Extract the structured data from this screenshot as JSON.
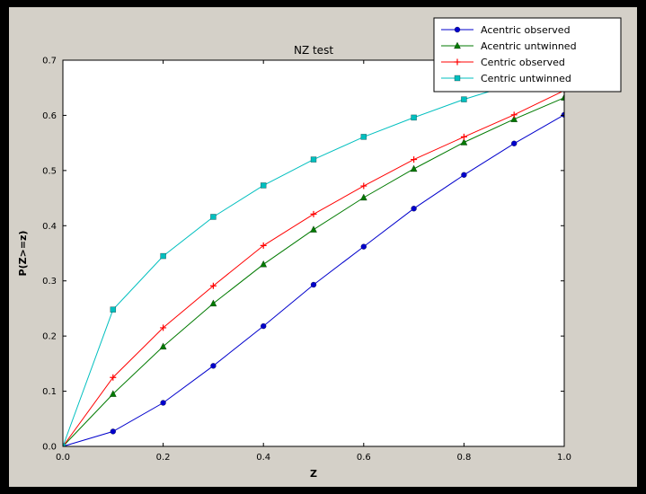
{
  "window": {
    "kind": "matplotlib-figure"
  },
  "colors": {
    "frame": "#000000",
    "figure_bg": "#d4d0c8",
    "axes_bg": "#ffffff",
    "axis_edge": "#000000",
    "legend_bg": "#ffffff",
    "legend_border": "#000000"
  },
  "chart_data": {
    "type": "line",
    "title": "NZ test",
    "xlabel": "Z",
    "ylabel": "P(Z>=z)",
    "xlim": [
      0.0,
      1.0
    ],
    "ylim": [
      0.0,
      0.7
    ],
    "xticks": [
      0.0,
      0.2,
      0.4,
      0.6,
      0.8,
      1.0
    ],
    "yticks": [
      0.0,
      0.1,
      0.2,
      0.3,
      0.4,
      0.5,
      0.6,
      0.7
    ],
    "grid": false,
    "legend_position": "upper right",
    "x": [
      0.0,
      0.1,
      0.2,
      0.3,
      0.4,
      0.5,
      0.6,
      0.7,
      0.8,
      0.9,
      1.0
    ],
    "series": [
      {
        "name": "Acentric observed",
        "color": "#0000cc",
        "marker": "circle",
        "values": [
          0.0,
          0.027,
          0.079,
          0.146,
          0.218,
          0.293,
          0.362,
          0.431,
          0.492,
          0.549,
          0.601
        ]
      },
      {
        "name": "Acentric untwinned",
        "color": "#007a00",
        "marker": "triangle",
        "values": [
          0.0,
          0.095,
          0.181,
          0.259,
          0.33,
          0.393,
          0.451,
          0.503,
          0.551,
          0.593,
          0.632
        ]
      },
      {
        "name": "Centric observed",
        "color": "#ff0000",
        "marker": "plus",
        "values": [
          0.0,
          0.125,
          0.215,
          0.291,
          0.364,
          0.421,
          0.472,
          0.52,
          0.561,
          0.601,
          0.645
        ]
      },
      {
        "name": "Centric untwinned",
        "color": "#00bfbf",
        "marker": "square",
        "values": [
          0.0,
          0.248,
          0.345,
          0.416,
          0.473,
          0.52,
          0.561,
          0.596,
          0.629,
          0.657,
          0.683
        ]
      }
    ]
  }
}
